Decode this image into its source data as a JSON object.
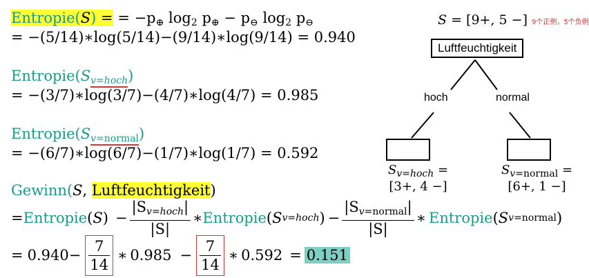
{
  "entropy_S": {
    "line1_label": "Entropie(",
    "line1_var": "S",
    "line1_close": ")",
    "line1_eq": " = −p",
    "line1_sub_plus": "⊕",
    "line1_log": " log",
    "line1_log_base": "2",
    "line1_p": " p",
    "line1_minus": " − p",
    "line1_sub_minus": "⊖",
    "line2": "= −(5/14)∗log(5/14)−(9/14)∗log(9/14) = 0.940"
  },
  "entropy_hoch": {
    "label": "Entropie(",
    "var": "S",
    "sub": "v=hoch",
    "close": ")",
    "line2": "= −(3/7)∗log(3/7)−(4/7)∗log(4/7) = 0.985"
  },
  "entropy_normal": {
    "label": "Entropie(",
    "var": "S",
    "sub_v": "v=",
    "sub_word": "normal",
    "close": ")",
    "line2": "= −(6/7)∗log(6/7)−(1/7)∗log(1/7) = 0.592"
  },
  "gain": {
    "label": "Gewinn(",
    "var": "S",
    "comma": ", ",
    "attribute": "Luftfeuchtigkeit",
    "close": ")",
    "eq": "= ",
    "entropie": "Entropie",
    "minus": "−",
    "times": "∗",
    "frac1_num_S": "|S",
    "frac1_num_sub": "v=hoch",
    "frac1_num_close": "|",
    "frac_den": "|S|",
    "frac2_num_S": "|S",
    "frac2_num_sub_v": "v=",
    "frac2_num_sub_word": "normal",
    "frac2_num_close": "|",
    "sub_hoch": "v=hoch",
    "sub_v": "v=",
    "sub_normal": "normal"
  },
  "calc": {
    "eq": "= ",
    "v1": "0.940",
    "minus": "−",
    "num": "7",
    "den": "14",
    "times": "∗",
    "v2": "0.985",
    "v3": "0.592",
    "eq2": "=",
    "result": "0.151"
  },
  "tree": {
    "set_label": "S = [9+, 5 −]",
    "set_note": "9个正例，5个负例",
    "root": "Luftfeuchtigkeit",
    "left_edge": "hoch",
    "right_edge": "normal",
    "left_leaf_S": "S",
    "left_leaf_sub": "v=hoch",
    "left_leaf_eq": " =",
    "left_leaf_counts": "[3+, 4 −]",
    "right_leaf_S": "S",
    "right_leaf_sub_v": "v=",
    "right_leaf_sub_word": "normal",
    "right_leaf_eq": " =",
    "right_leaf_counts": "[6+, 1 −]"
  }
}
